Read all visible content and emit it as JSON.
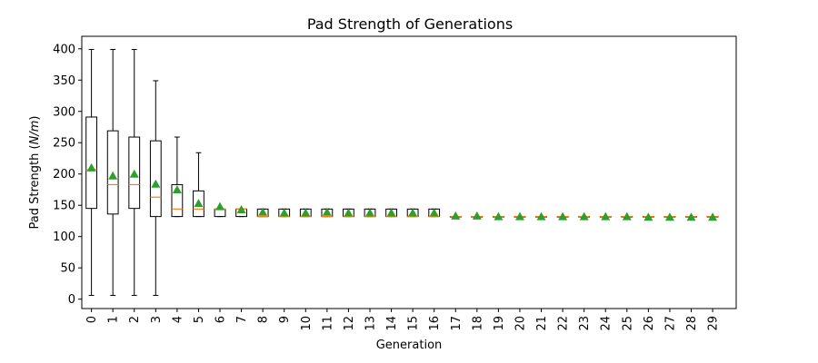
{
  "chart_data": {
    "type": "box",
    "title": "Pad Strength of Generations",
    "xlabel": "Generation",
    "ylabel_prefix": "Pad Strength (",
    "ylabel_unit": "N/m",
    "ylabel_suffix": ")",
    "ylim": [
      -15,
      420
    ],
    "yticks": [
      0,
      50,
      100,
      150,
      200,
      250,
      300,
      350,
      400
    ],
    "grid": false,
    "colors": {
      "box": "#000000",
      "median": "#ff7f0e",
      "mean": "#2ca02c"
    },
    "generations": [
      {
        "label": "0",
        "q1": 145,
        "median": 207,
        "q3": 291,
        "whislo": 6,
        "whishi": 399,
        "mean": 210
      },
      {
        "label": "1",
        "q1": 136,
        "median": 183,
        "q3": 269,
        "whislo": 6,
        "whishi": 399,
        "mean": 197
      },
      {
        "label": "2",
        "q1": 145,
        "median": 183,
        "q3": 259,
        "whislo": 6,
        "whishi": 399,
        "mean": 200
      },
      {
        "label": "3",
        "q1": 132,
        "median": 163,
        "q3": 253,
        "whislo": 6,
        "whishi": 349,
        "mean": 184
      },
      {
        "label": "4",
        "q1": 132,
        "median": 144,
        "q3": 183,
        "whislo": 132,
        "whishi": 259,
        "mean": 175
      },
      {
        "label": "5",
        "q1": 132,
        "median": 144,
        "q3": 173,
        "whislo": 132,
        "whishi": 234,
        "mean": 153
      },
      {
        "label": "6",
        "q1": 132,
        "median": 144,
        "q3": 144,
        "whislo": 132,
        "whishi": 144,
        "mean": 148
      },
      {
        "label": "7",
        "q1": 132,
        "median": 144,
        "q3": 144,
        "whislo": 132,
        "whishi": 144,
        "mean": 143
      },
      {
        "label": "8",
        "q1": 132,
        "median": 132,
        "q3": 144,
        "whislo": 132,
        "whishi": 144,
        "mean": 139
      },
      {
        "label": "9",
        "q1": 132,
        "median": 132,
        "q3": 144,
        "whislo": 132,
        "whishi": 144,
        "mean": 138
      },
      {
        "label": "10",
        "q1": 132,
        "median": 132,
        "q3": 144,
        "whislo": 132,
        "whishi": 144,
        "mean": 138
      },
      {
        "label": "11",
        "q1": 132,
        "median": 132,
        "q3": 144,
        "whislo": 132,
        "whishi": 144,
        "mean": 139
      },
      {
        "label": "12",
        "q1": 132,
        "median": 132,
        "q3": 144,
        "whislo": 132,
        "whishi": 144,
        "mean": 138
      },
      {
        "label": "13",
        "q1": 132,
        "median": 132,
        "q3": 144,
        "whislo": 132,
        "whishi": 144,
        "mean": 138
      },
      {
        "label": "14",
        "q1": 132,
        "median": 132,
        "q3": 144,
        "whislo": 132,
        "whishi": 144,
        "mean": 138
      },
      {
        "label": "15",
        "q1": 132,
        "median": 132,
        "q3": 144,
        "whislo": 132,
        "whishi": 144,
        "mean": 138
      },
      {
        "label": "16",
        "q1": 132,
        "median": 132,
        "q3": 144,
        "whislo": 132,
        "whishi": 144,
        "mean": 138
      },
      {
        "label": "17",
        "q1": 132,
        "median": 132,
        "q3": 132,
        "whislo": 132,
        "whishi": 132,
        "mean": 133
      },
      {
        "label": "18",
        "q1": 132,
        "median": 132,
        "q3": 132,
        "whislo": 132,
        "whishi": 132,
        "mean": 133
      },
      {
        "label": "19",
        "q1": 132,
        "median": 132,
        "q3": 132,
        "whislo": 132,
        "whishi": 132,
        "mean": 132
      },
      {
        "label": "20",
        "q1": 132,
        "median": 132,
        "q3": 132,
        "whislo": 132,
        "whishi": 132,
        "mean": 132
      },
      {
        "label": "21",
        "q1": 132,
        "median": 132,
        "q3": 132,
        "whislo": 132,
        "whishi": 132,
        "mean": 132
      },
      {
        "label": "22",
        "q1": 132,
        "median": 132,
        "q3": 132,
        "whislo": 132,
        "whishi": 132,
        "mean": 132
      },
      {
        "label": "23",
        "q1": 132,
        "median": 132,
        "q3": 132,
        "whislo": 132,
        "whishi": 132,
        "mean": 132
      },
      {
        "label": "24",
        "q1": 132,
        "median": 132,
        "q3": 132,
        "whislo": 132,
        "whishi": 132,
        "mean": 132
      },
      {
        "label": "25",
        "q1": 132,
        "median": 132,
        "q3": 132,
        "whislo": 132,
        "whishi": 132,
        "mean": 132
      },
      {
        "label": "26",
        "q1": 132,
        "median": 132,
        "q3": 132,
        "whislo": 132,
        "whishi": 132,
        "mean": 131
      },
      {
        "label": "27",
        "q1": 132,
        "median": 132,
        "q3": 132,
        "whislo": 132,
        "whishi": 132,
        "mean": 131
      },
      {
        "label": "28",
        "q1": 132,
        "median": 132,
        "q3": 132,
        "whislo": 132,
        "whishi": 132,
        "mean": 131
      },
      {
        "label": "29",
        "q1": 132,
        "median": 132,
        "q3": 132,
        "whislo": 132,
        "whishi": 132,
        "mean": 131
      }
    ]
  }
}
